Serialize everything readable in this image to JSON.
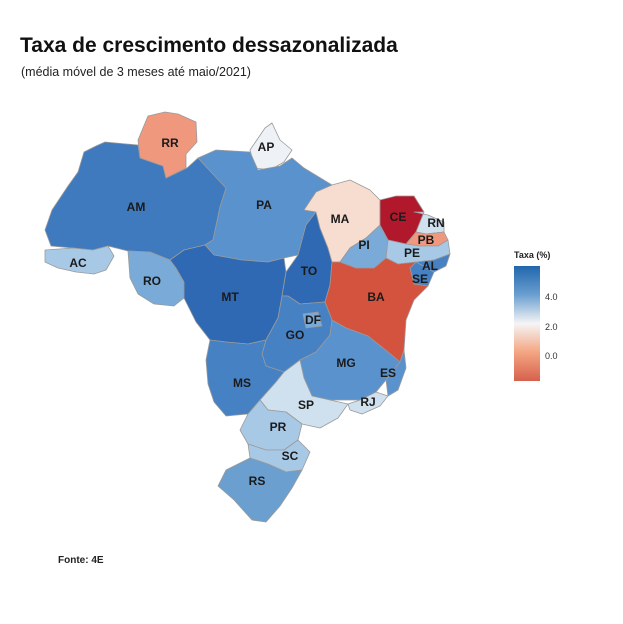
{
  "title": "Taxa de crescimento dessazonalizada",
  "subtitle": "(média móvel de 3 meses até maio/2021)",
  "source": "Fonte: 4E",
  "legend": {
    "title": "Taxa (%)",
    "ticks": [
      "4.0",
      "2.0",
      "0.0"
    ],
    "gradient_colors": [
      "#2166ac",
      "#6a9fd0",
      "#f5f5f5",
      "#f4a582",
      "#d6604d"
    ]
  },
  "colors": {
    "very_strong_blue": "#2f68b3",
    "strong_blue": "#4681c4",
    "mid_blue": "#5a92cd",
    "medium_light_blue": "#7aaad7",
    "light_blue": "#a8c9e6",
    "very_light_blue": "#cfe0ef",
    "near_white": "#eef2f6",
    "light_peach": "#f6ddd0",
    "salmon": "#f0987e",
    "red": "#d4533f",
    "dark_red": "#b2182b"
  },
  "states": [
    {
      "abbr": "AM",
      "color": "#3f7abf"
    },
    {
      "abbr": "PA",
      "color": "#5a92cd"
    },
    {
      "abbr": "RR",
      "color": "#f0987e"
    },
    {
      "abbr": "AP",
      "color": "#eef2f6"
    },
    {
      "abbr": "AC",
      "color": "#a8c9e6"
    },
    {
      "abbr": "RO",
      "color": "#7aaad7"
    },
    {
      "abbr": "MT",
      "color": "#2f68b3"
    },
    {
      "abbr": "TO",
      "color": "#2f68b3"
    },
    {
      "abbr": "MA",
      "color": "#f6ddd0"
    },
    {
      "abbr": "PI",
      "color": "#7aaad7"
    },
    {
      "abbr": "CE",
      "color": "#b2182b"
    },
    {
      "abbr": "RN",
      "color": "#cfe0ef"
    },
    {
      "abbr": "PB",
      "color": "#f0987e"
    },
    {
      "abbr": "PE",
      "color": "#a8c9e6"
    },
    {
      "abbr": "AL",
      "color": "#4681c4"
    },
    {
      "abbr": "SE",
      "color": "#4681c4"
    },
    {
      "abbr": "BA",
      "color": "#d4533f"
    },
    {
      "abbr": "GO",
      "color": "#4681c4"
    },
    {
      "abbr": "DF",
      "color": "#7aaad7"
    },
    {
      "abbr": "MG",
      "color": "#5a92cd"
    },
    {
      "abbr": "ES",
      "color": "#5a92cd"
    },
    {
      "abbr": "MS",
      "color": "#4681c4"
    },
    {
      "abbr": "SP",
      "color": "#cfe0ef"
    },
    {
      "abbr": "RJ",
      "color": "#cfe0ef"
    },
    {
      "abbr": "PR",
      "color": "#a8c9e6"
    },
    {
      "abbr": "SC",
      "color": "#a8c9e6"
    },
    {
      "abbr": "RS",
      "color": "#6a9fd0"
    }
  ]
}
